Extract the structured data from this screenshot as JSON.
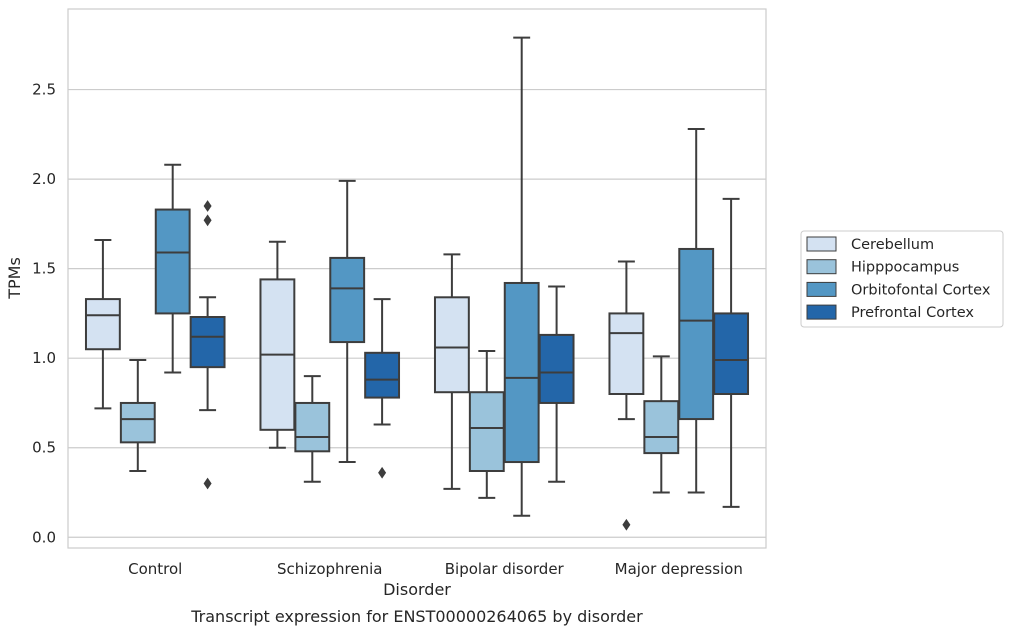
{
  "chart_data": {
    "type": "box",
    "title": "",
    "caption": "Transcript expression for ENST00000264065 by disorder",
    "xlabel": "Disorder",
    "ylabel": "TPMs",
    "ylim": [
      -0.06,
      2.95
    ],
    "yticks": [
      "0.0",
      "0.5",
      "1.0",
      "1.5",
      "2.0",
      "2.5"
    ],
    "grid": "horizontal",
    "legend_position": "right",
    "categories": [
      "Control",
      "Schizophrenia",
      "Bipolar disorder",
      "Major depression"
    ],
    "series": [
      {
        "name": "Cerebellum",
        "color": "#d4e2f2",
        "boxes": [
          {
            "whisker_low": 0.72,
            "q1": 1.05,
            "median": 1.24,
            "q3": 1.33,
            "whisker_high": 1.66,
            "outliers": []
          },
          {
            "whisker_low": 0.5,
            "q1": 0.6,
            "median": 1.02,
            "q3": 1.44,
            "whisker_high": 1.65,
            "outliers": []
          },
          {
            "whisker_low": 0.27,
            "q1": 0.81,
            "median": 1.06,
            "q3": 1.34,
            "whisker_high": 1.58,
            "outliers": []
          },
          {
            "whisker_low": 0.66,
            "q1": 0.8,
            "median": 1.14,
            "q3": 1.25,
            "whisker_high": 1.54,
            "outliers": [
              0.07
            ]
          }
        ]
      },
      {
        "name": "Hipppocampus",
        "color": "#9ac3db",
        "boxes": [
          {
            "whisker_low": 0.37,
            "q1": 0.53,
            "median": 0.66,
            "q3": 0.75,
            "whisker_high": 0.99,
            "outliers": []
          },
          {
            "whisker_low": 0.31,
            "q1": 0.48,
            "median": 0.56,
            "q3": 0.75,
            "whisker_high": 0.9,
            "outliers": []
          },
          {
            "whisker_low": 0.22,
            "q1": 0.37,
            "median": 0.61,
            "q3": 0.81,
            "whisker_high": 1.04,
            "outliers": []
          },
          {
            "whisker_low": 0.25,
            "q1": 0.47,
            "median": 0.56,
            "q3": 0.76,
            "whisker_high": 1.01,
            "outliers": []
          }
        ]
      },
      {
        "name": "Orbitofontal Cortex",
        "color": "#5397c4",
        "boxes": [
          {
            "whisker_low": 0.92,
            "q1": 1.25,
            "median": 1.59,
            "q3": 1.83,
            "whisker_high": 2.08,
            "outliers": []
          },
          {
            "whisker_low": 0.42,
            "q1": 1.09,
            "median": 1.39,
            "q3": 1.56,
            "whisker_high": 1.99,
            "outliers": []
          },
          {
            "whisker_low": 0.12,
            "q1": 0.42,
            "median": 0.89,
            "q3": 1.42,
            "whisker_high": 2.79,
            "outliers": []
          },
          {
            "whisker_low": 0.25,
            "q1": 0.66,
            "median": 1.21,
            "q3": 1.61,
            "whisker_high": 2.28,
            "outliers": []
          }
        ]
      },
      {
        "name": "Prefrontal Cortex",
        "color": "#2366a9",
        "boxes": [
          {
            "whisker_low": 0.71,
            "q1": 0.95,
            "median": 1.12,
            "q3": 1.23,
            "whisker_high": 1.34,
            "outliers": [
              1.85,
              1.77,
              0.3
            ]
          },
          {
            "whisker_low": 0.63,
            "q1": 0.78,
            "median": 0.88,
            "q3": 1.03,
            "whisker_high": 1.33,
            "outliers": [
              0.36
            ]
          },
          {
            "whisker_low": 0.31,
            "q1": 0.75,
            "median": 0.92,
            "q3": 1.13,
            "whisker_high": 1.4,
            "outliers": []
          },
          {
            "whisker_low": 0.17,
            "q1": 0.8,
            "median": 0.99,
            "q3": 1.25,
            "whisker_high": 1.89,
            "outliers": []
          }
        ]
      }
    ]
  }
}
